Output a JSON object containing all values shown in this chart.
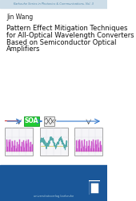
{
  "series_title": "Karlsruhe Series in Photonics & Communications, Vol. 3",
  "author": "Jin Wang",
  "title_line1": "Pattern Effect Mitigation Techniques",
  "title_line2": "for All-Optical Wavelength Converters",
  "title_line3": "Based on Semiconductor Optical",
  "title_line4": "Amplifiers",
  "bg_color": "#ffffff",
  "top_bar_color": "#cddde8",
  "bottom_bar_color": "#1a5799",
  "series_text_color": "#5588aa",
  "author_color": "#222222",
  "title_color": "#111111",
  "soa_box_color": "#22cc33",
  "soa_text_color": "#ffffff",
  "arrow_color_blue": "#3377cc",
  "arrow_color_red": "#cc3333",
  "panel_bg": "#f5f5f8",
  "panel_edge": "#999999",
  "panel1_bar_color": "#cc55cc",
  "panel1_base_color": "#cccc55",
  "panel2_wave_color": "#55aaaa",
  "panel2_base_color": "#cccc55",
  "panel3_bar_color": "#cc55cc",
  "panel3_base_color": "#cccc55",
  "logo_white": "#ffffff",
  "publisher_text": "universitatsverlag karlsruhe",
  "publisher_color": "#aaccdd",
  "bottom_bar_height": 45,
  "top_bar_height": 10
}
